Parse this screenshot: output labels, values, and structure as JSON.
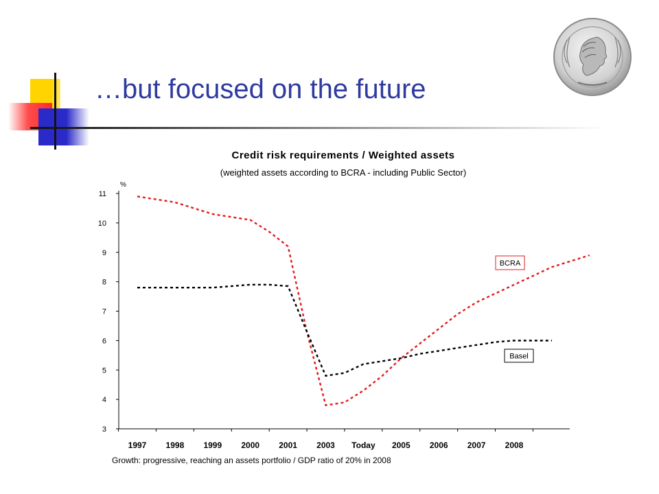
{
  "slide": {
    "title": "…but focused on the future"
  },
  "icons": {
    "coin": "bcra-coin-emblem"
  },
  "colors": {
    "title": "#2e3aa0",
    "bcra_series": "#e21b1b",
    "basel_series": "#000000"
  },
  "chart_data": {
    "type": "line",
    "title": "Credit risk requirements / Weighted assets",
    "subtitle": "(weighted assets according to BCRA - including Public Sector)",
    "ylabel": "%",
    "categories": [
      "1997",
      "1998",
      "1999",
      "2000",
      "2001",
      "2003",
      "Today",
      "2005",
      "2006",
      "2007",
      "2008"
    ],
    "yticks": [
      "3",
      "4",
      "5",
      "6",
      "7",
      "8",
      "9",
      "10",
      "11"
    ],
    "ylim": [
      3,
      11
    ],
    "grid": false,
    "series": [
      {
        "name": "BCRA",
        "x": [
          1997.0,
          1997.5,
          1998.0,
          1998.5,
          1999.0,
          1999.5,
          2000.0,
          2000.5,
          2001.0,
          2001.5,
          2002.0,
          2002.5,
          2003.0,
          2003.5,
          2004.0,
          2004.5,
          2005.0,
          2005.5,
          2006.0,
          2006.5,
          2007.0,
          2007.5,
          2008.0,
          2008.5,
          2009.0
        ],
        "values": [
          10.9,
          10.8,
          10.7,
          10.5,
          10.3,
          10.2,
          10.1,
          9.7,
          9.2,
          6.3,
          3.8,
          3.9,
          4.3,
          4.8,
          5.4,
          5.9,
          6.4,
          6.9,
          7.3,
          7.6,
          7.9,
          8.2,
          8.5,
          8.7,
          8.9
        ]
      },
      {
        "name": "Basel",
        "x": [
          1997.0,
          1997.5,
          1998.0,
          1998.5,
          1999.0,
          1999.5,
          2000.0,
          2000.5,
          2001.0,
          2001.5,
          2002.0,
          2002.5,
          2003.0,
          2003.5,
          2004.0,
          2004.5,
          2005.0,
          2005.5,
          2006.0,
          2006.5,
          2007.0,
          2007.5,
          2008.0
        ],
        "values": [
          7.8,
          7.8,
          7.8,
          7.8,
          7.8,
          7.85,
          7.9,
          7.9,
          7.85,
          6.3,
          4.8,
          4.9,
          5.2,
          5.3,
          5.4,
          5.55,
          5.65,
          5.75,
          5.85,
          5.95,
          6.0,
          6.0,
          6.0
        ]
      }
    ],
    "legend": {
      "bcra_label": "BCRA",
      "basel_label": "Basel"
    }
  },
  "footnote": "Growth: progressive, reaching an assets portfolio / GDP ratio of 20% in 2008"
}
